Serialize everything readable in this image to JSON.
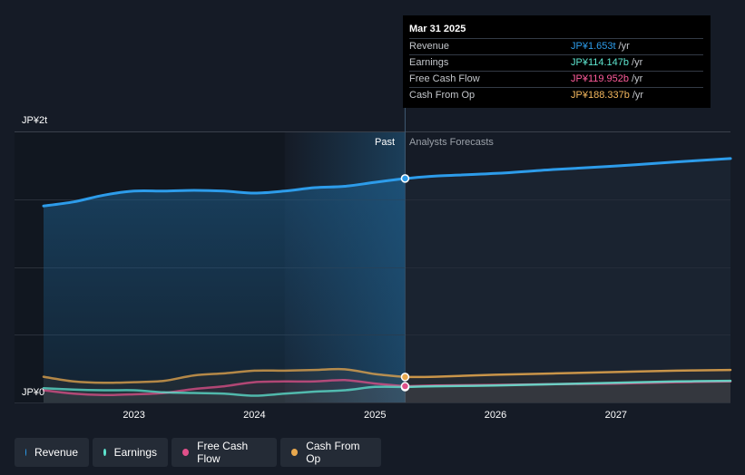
{
  "tooltip": {
    "date": "Mar 31 2025",
    "rows": [
      {
        "name": "Revenue",
        "value": "JP¥1.653t",
        "unit": "/yr",
        "color": "#2d9cea"
      },
      {
        "name": "Earnings",
        "value": "JP¥114.147b",
        "unit": "/yr",
        "color": "#5ee6d0"
      },
      {
        "name": "Free Cash Flow",
        "value": "JP¥119.952b",
        "unit": "/yr",
        "color": "#ff5c9b"
      },
      {
        "name": "Cash From Op",
        "value": "JP¥188.337b",
        "unit": "/yr",
        "color": "#f5b85e"
      }
    ]
  },
  "labels": {
    "past": "Past",
    "forecast": "Analysts Forecasts"
  },
  "legend": [
    {
      "name": "Revenue",
      "color": "#2d9cea"
    },
    {
      "name": "Earnings",
      "color": "#5ee6d0"
    },
    {
      "name": "Free Cash Flow",
      "color": "#e0508a"
    },
    {
      "name": "Cash From Op",
      "color": "#e8a84e"
    }
  ],
  "chart_data": {
    "type": "line",
    "y_unit": "JP¥ trillions",
    "ylim": [
      0,
      2
    ],
    "ytick_labels": [
      "JP¥2t",
      "JP¥0"
    ],
    "xlim": [
      2022.25,
      2027.95
    ],
    "xtick_labels": [
      "2023",
      "2024",
      "2025",
      "2026",
      "2027"
    ],
    "xticks": [
      2023,
      2024,
      2025,
      2026,
      2027
    ],
    "divider_x": 2025.25,
    "highlight_start_x": 2024.25,
    "grid": true,
    "legend_position": "bottom-left",
    "series": [
      {
        "name": "Revenue",
        "color": "#2d9cea",
        "past": [
          [
            2022.25,
            1.45
          ],
          [
            2022.5,
            1.48
          ],
          [
            2022.75,
            1.53
          ],
          [
            2023.0,
            1.56
          ],
          [
            2023.25,
            1.56
          ],
          [
            2023.5,
            1.565
          ],
          [
            2023.75,
            1.56
          ],
          [
            2024.0,
            1.545
          ],
          [
            2024.25,
            1.56
          ],
          [
            2024.5,
            1.585
          ],
          [
            2024.75,
            1.595
          ],
          [
            2025.0,
            1.625
          ],
          [
            2025.25,
            1.653
          ]
        ],
        "forecast": [
          [
            2025.25,
            1.653
          ],
          [
            2025.5,
            1.67
          ],
          [
            2026.0,
            1.69
          ],
          [
            2026.5,
            1.72
          ],
          [
            2027.0,
            1.745
          ],
          [
            2027.5,
            1.775
          ],
          [
            2027.95,
            1.8
          ]
        ]
      },
      {
        "name": "Earnings",
        "color": "#5ee6d0",
        "past": [
          [
            2022.25,
            0.105
          ],
          [
            2022.5,
            0.095
          ],
          [
            2022.75,
            0.09
          ],
          [
            2023.0,
            0.09
          ],
          [
            2023.25,
            0.075
          ],
          [
            2023.5,
            0.07
          ],
          [
            2023.75,
            0.065
          ],
          [
            2024.0,
            0.05
          ],
          [
            2024.25,
            0.065
          ],
          [
            2024.5,
            0.08
          ],
          [
            2024.75,
            0.09
          ],
          [
            2025.0,
            0.115
          ],
          [
            2025.25,
            0.114
          ]
        ],
        "forecast": [
          [
            2025.25,
            0.114
          ],
          [
            2025.5,
            0.12
          ],
          [
            2026.0,
            0.125
          ],
          [
            2026.5,
            0.135
          ],
          [
            2027.0,
            0.145
          ],
          [
            2027.5,
            0.155
          ],
          [
            2027.95,
            0.16
          ]
        ]
      },
      {
        "name": "Free Cash Flow",
        "color": "#e0508a",
        "past": [
          [
            2022.25,
            0.09
          ],
          [
            2022.5,
            0.065
          ],
          [
            2022.75,
            0.055
          ],
          [
            2023.0,
            0.06
          ],
          [
            2023.25,
            0.07
          ],
          [
            2023.5,
            0.1
          ],
          [
            2023.75,
            0.12
          ],
          [
            2024.0,
            0.15
          ],
          [
            2024.25,
            0.155
          ],
          [
            2024.5,
            0.155
          ],
          [
            2024.75,
            0.165
          ],
          [
            2025.0,
            0.14
          ],
          [
            2025.25,
            0.12
          ]
        ],
        "forecast": [
          [
            2025.25,
            0.12
          ],
          [
            2025.5,
            0.125
          ],
          [
            2026.0,
            0.13
          ],
          [
            2026.5,
            0.135
          ],
          [
            2027.0,
            0.14
          ],
          [
            2027.5,
            0.15
          ],
          [
            2027.95,
            0.155
          ]
        ]
      },
      {
        "name": "Cash From Op",
        "color": "#e8a84e",
        "past": [
          [
            2022.25,
            0.19
          ],
          [
            2022.5,
            0.155
          ],
          [
            2022.75,
            0.145
          ],
          [
            2023.0,
            0.15
          ],
          [
            2023.25,
            0.16
          ],
          [
            2023.5,
            0.2
          ],
          [
            2023.75,
            0.215
          ],
          [
            2024.0,
            0.235
          ],
          [
            2024.25,
            0.235
          ],
          [
            2024.5,
            0.24
          ],
          [
            2024.75,
            0.245
          ],
          [
            2025.0,
            0.21
          ],
          [
            2025.25,
            0.188
          ]
        ],
        "forecast": [
          [
            2025.25,
            0.188
          ],
          [
            2025.5,
            0.19
          ],
          [
            2026.0,
            0.205
          ],
          [
            2026.5,
            0.215
          ],
          [
            2027.0,
            0.225
          ],
          [
            2027.5,
            0.235
          ],
          [
            2027.95,
            0.24
          ]
        ]
      }
    ]
  }
}
